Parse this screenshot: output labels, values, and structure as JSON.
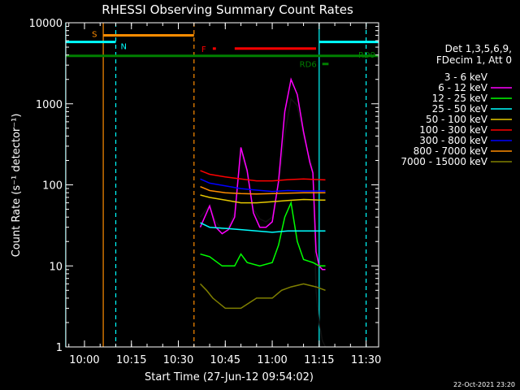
{
  "chart_data": {
    "type": "line",
    "title": "RHESSI Observing Summary Count Rates",
    "xlabel": "Start Time (27-Jun-12 09:54:02)",
    "ylabel": "Count Rate (s⁻¹ detector⁻¹)",
    "y_scale": "log",
    "ylim": [
      1,
      10000
    ],
    "xlim": [
      "09:54:02",
      "11:34"
    ],
    "x_ticks": [
      "10:00",
      "10:15",
      "10:30",
      "10:45",
      "11:00",
      "11:15",
      "11:30"
    ],
    "y_ticks": [
      "1",
      "10",
      "100",
      "1000",
      "10000"
    ],
    "timestamp": "22-Oct-2021 23:20",
    "legend": {
      "placement": "right",
      "header": [
        "Det 1,3,5,6,9,",
        "FDecim 1, Att 0"
      ]
    },
    "series": [
      {
        "name": "3 - 6 keV",
        "color": "#000000",
        "t": [
          "10:37",
          "10:39",
          "10:40",
          "10:42",
          "10:44",
          "10:46",
          "10:48",
          "10:50",
          "10:52",
          "10:54",
          "10:56",
          "10:58",
          "11:00",
          "11:02",
          "11:04",
          "11:06",
          "11:08",
          "11:10",
          "11:12",
          "11:13",
          "11:14",
          "11:15",
          "11:16",
          "11:17"
        ],
        "values": [
          40,
          50,
          55,
          35,
          28,
          30,
          45,
          260,
          140,
          50,
          38,
          35,
          40,
          100,
          420,
          1150,
          950,
          400,
          210,
          150,
          5,
          2,
          1.2,
          1
        ]
      },
      {
        "name": "6 - 12 keV",
        "color": "#ff00ff",
        "t": [
          "10:37",
          "10:39",
          "10:40",
          "10:42",
          "10:44",
          "10:46",
          "10:48",
          "10:50",
          "10:52",
          "10:54",
          "10:56",
          "10:58",
          "11:00",
          "11:02",
          "11:04",
          "11:06",
          "11:08",
          "11:10",
          "11:12",
          "11:13",
          "11:14",
          "11:15",
          "11:16",
          "11:17"
        ],
        "values": [
          30,
          45,
          55,
          30,
          25,
          28,
          40,
          290,
          150,
          45,
          30,
          30,
          35,
          110,
          800,
          2000,
          1300,
          450,
          190,
          140,
          15,
          10,
          9,
          9
        ]
      },
      {
        "name": "12 - 25 keV",
        "color": "#00ff00",
        "t": [
          "10:37",
          "10:40",
          "10:44",
          "10:48",
          "10:50",
          "10:52",
          "10:56",
          "11:00",
          "11:02",
          "11:04",
          "11:06",
          "11:08",
          "11:10",
          "11:13",
          "11:15",
          "11:17"
        ],
        "values": [
          14,
          13,
          10,
          10,
          14,
          11,
          10,
          11,
          18,
          40,
          60,
          20,
          12,
          11,
          10,
          10
        ]
      },
      {
        "name": "25 - 50 keV",
        "color": "#00ffff",
        "t": [
          "10:37",
          "10:40",
          "10:45",
          "10:50",
          "10:55",
          "11:00",
          "11:05",
          "11:10",
          "11:15",
          "11:17"
        ],
        "values": [
          34,
          30,
          29,
          28,
          27,
          26,
          27,
          27,
          27,
          27
        ]
      },
      {
        "name": "50 - 100 keV",
        "color": "#e6c800",
        "t": [
          "10:37",
          "10:40",
          "10:45",
          "10:50",
          "10:55",
          "11:00",
          "11:05",
          "11:10",
          "11:15",
          "11:17"
        ],
        "values": [
          75,
          70,
          65,
          60,
          60,
          62,
          64,
          66,
          65,
          65
        ]
      },
      {
        "name": "100 - 300 keV",
        "color": "#ff0000",
        "t": [
          "10:37",
          "10:40",
          "10:45",
          "10:50",
          "10:55",
          "11:00",
          "11:05",
          "11:10",
          "11:15",
          "11:17"
        ],
        "values": [
          150,
          135,
          125,
          118,
          112,
          112,
          116,
          118,
          116,
          115
        ]
      },
      {
        "name": "300 - 800 keV",
        "color": "#0000ff",
        "t": [
          "10:37",
          "10:40",
          "10:45",
          "10:50",
          "10:55",
          "11:00",
          "11:05",
          "11:10",
          "11:15",
          "11:17"
        ],
        "values": [
          118,
          105,
          97,
          90,
          86,
          83,
          85,
          84,
          84,
          84
        ]
      },
      {
        "name": "800 - 7000 keV",
        "color": "#ff8c00",
        "t": [
          "10:37",
          "10:40",
          "10:45",
          "10:50",
          "10:55",
          "11:00",
          "11:05",
          "11:10",
          "11:15",
          "11:17"
        ],
        "values": [
          95,
          85,
          80,
          78,
          77,
          78,
          79,
          80,
          80,
          80
        ]
      },
      {
        "name": "7000 - 15000 keV",
        "color": "#808000",
        "t": [
          "10:37",
          "10:39",
          "10:41",
          "10:45",
          "10:50",
          "10:55",
          "11:00",
          "11:03",
          "11:06",
          "11:10",
          "11:14",
          "11:17"
        ],
        "values": [
          6,
          5,
          4,
          3,
          3,
          4,
          4,
          5,
          5.5,
          6,
          5.5,
          5
        ]
      }
    ],
    "flag_bars": [
      {
        "label": "S",
        "color": "#ff8c00",
        "intervals": [
          [
            "10:06",
            "10:35"
          ]
        ],
        "level": 7000
      },
      {
        "label": "N",
        "color": "#00ffff",
        "intervals": [
          [
            "09:54",
            "10:10"
          ],
          [
            "11:15",
            "11:34"
          ]
        ],
        "level": 5800
      },
      {
        "label": "F",
        "color": "#ff0000",
        "intervals": [
          [
            "10:41",
            "10:42"
          ],
          [
            "10:48",
            "11:14"
          ]
        ],
        "level": 4800
      },
      {
        "label": "RD9",
        "color": "#008000",
        "intervals": [
          [
            "09:54",
            "11:34"
          ]
        ],
        "level": 3900
      },
      {
        "label": "RD6",
        "color": "#008000",
        "intervals": [
          [
            "11:16",
            "11:18"
          ]
        ],
        "level": 3100
      }
    ],
    "vertical_lines": [
      {
        "time": "09:54",
        "color": "#00ffff",
        "style": "solid"
      },
      {
        "time": "10:10",
        "color": "#00ffff",
        "style": "dashed"
      },
      {
        "time": "10:06",
        "color": "#ff8c00",
        "style": "solid"
      },
      {
        "time": "10:35",
        "color": "#ff8c00",
        "style": "dashed"
      },
      {
        "time": "11:15",
        "color": "#00ffff",
        "style": "solid"
      },
      {
        "time": "11:30",
        "color": "#00ffff",
        "style": "dashed"
      }
    ]
  }
}
